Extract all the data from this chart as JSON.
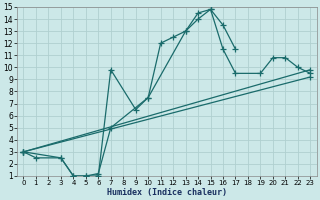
{
  "title": "",
  "xlabel": "Humidex (Indice chaleur)",
  "xlim": [
    -0.5,
    23.5
  ],
  "ylim": [
    1,
    15
  ],
  "xticks": [
    0,
    1,
    2,
    3,
    4,
    5,
    6,
    7,
    8,
    9,
    10,
    11,
    12,
    13,
    14,
    15,
    16,
    17,
    18,
    19,
    20,
    21,
    22,
    23
  ],
  "yticks": [
    1,
    2,
    3,
    4,
    5,
    6,
    7,
    8,
    9,
    10,
    11,
    12,
    13,
    14,
    15
  ],
  "bg_color": "#cce8e8",
  "grid_color": "#b0d0d0",
  "line_color": "#1a6b6b",
  "line_width": 0.9,
  "marker": "+",
  "marker_size": 4,
  "marker_lw": 0.9,
  "lines": [
    {
      "x": [
        0,
        1,
        3,
        4,
        5,
        6,
        7,
        9,
        10,
        11,
        12,
        13,
        14,
        15,
        16,
        17
      ],
      "y": [
        3,
        2.5,
        2.5,
        1,
        1,
        1,
        9.8,
        6.5,
        7.5,
        12,
        12.5,
        13,
        14.5,
        14.8,
        13.5,
        11.5
      ]
    },
    {
      "x": [
        0,
        3,
        4,
        5,
        6,
        7,
        10,
        13,
        14,
        15,
        16,
        17,
        19,
        20,
        21,
        22,
        23
      ],
      "y": [
        3,
        2.5,
        1,
        1,
        1.2,
        5,
        7.5,
        13,
        14,
        14.8,
        11.5,
        9.5,
        9.5,
        10.8,
        10.8,
        10,
        9.5
      ]
    },
    {
      "x": [
        0,
        23
      ],
      "y": [
        3,
        9.8
      ]
    },
    {
      "x": [
        0,
        23
      ],
      "y": [
        3,
        9.2
      ]
    }
  ]
}
